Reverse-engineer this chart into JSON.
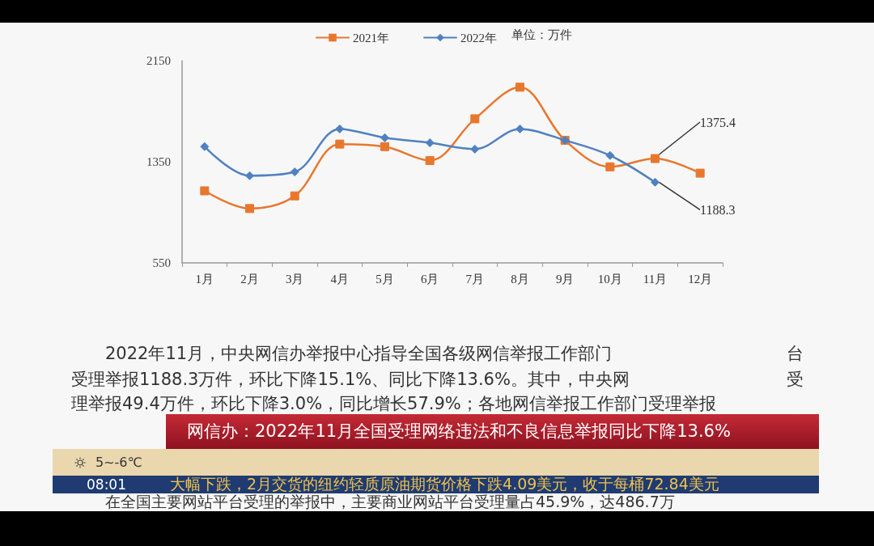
{
  "chart_data": {
    "type": "line",
    "title": "网信办：2022年11月全国受理网络违法和不良信息举报同比下降13.6%",
    "ylabel": "单位：万件",
    "categories": [
      "1月",
      "2月",
      "3月",
      "4月",
      "5月",
      "6月",
      "7月",
      "8月",
      "9月",
      "10月",
      "11月",
      "12月"
    ],
    "series": [
      {
        "name": "2021年",
        "color": "#e8772e",
        "marker": "square",
        "values": [
          1120,
          980,
          1080,
          1490,
          1470,
          1360,
          1690,
          1940,
          1520,
          1310,
          1375.4,
          1260
        ],
        "value_labels": [
          null,
          null,
          null,
          null,
          null,
          null,
          null,
          null,
          null,
          null,
          "1375.4",
          null
        ]
      },
      {
        "name": "2022年",
        "color": "#4f81c2",
        "marker": "diamond",
        "values": [
          1470,
          1240,
          1270,
          1610,
          1540,
          1500,
          1450,
          1610,
          1520,
          1400,
          1188.3,
          null
        ],
        "value_labels": [
          null,
          null,
          null,
          null,
          null,
          null,
          null,
          null,
          null,
          null,
          "1188.3",
          null
        ]
      }
    ],
    "ylim": [
      550,
      2150
    ],
    "yticks": [
      550,
      1350,
      2150
    ],
    "grid": false,
    "legend": "top",
    "annotations": [
      "2022年11月，中央网信办举报中心指导全国各级网信举报工作部门",
      "台",
      "受理举报1188.3万件，环比下降15.1%、同比下降13.6%。其中，中央网",
      "受",
      "理举报49.4万件，环比下降3.0%，同比增长57.9%；各地网信举报工作部门受理举报",
      "在全国主要网站平台受理的举报中，主要商业网站平台受理量占45.9%，达486.7万",
      "大幅下跌，2月交货的纽约轻质原油期货价格下跌4.09美元，收于每桶72.84美元",
      "08:01",
      "5~-6℃"
    ]
  }
}
